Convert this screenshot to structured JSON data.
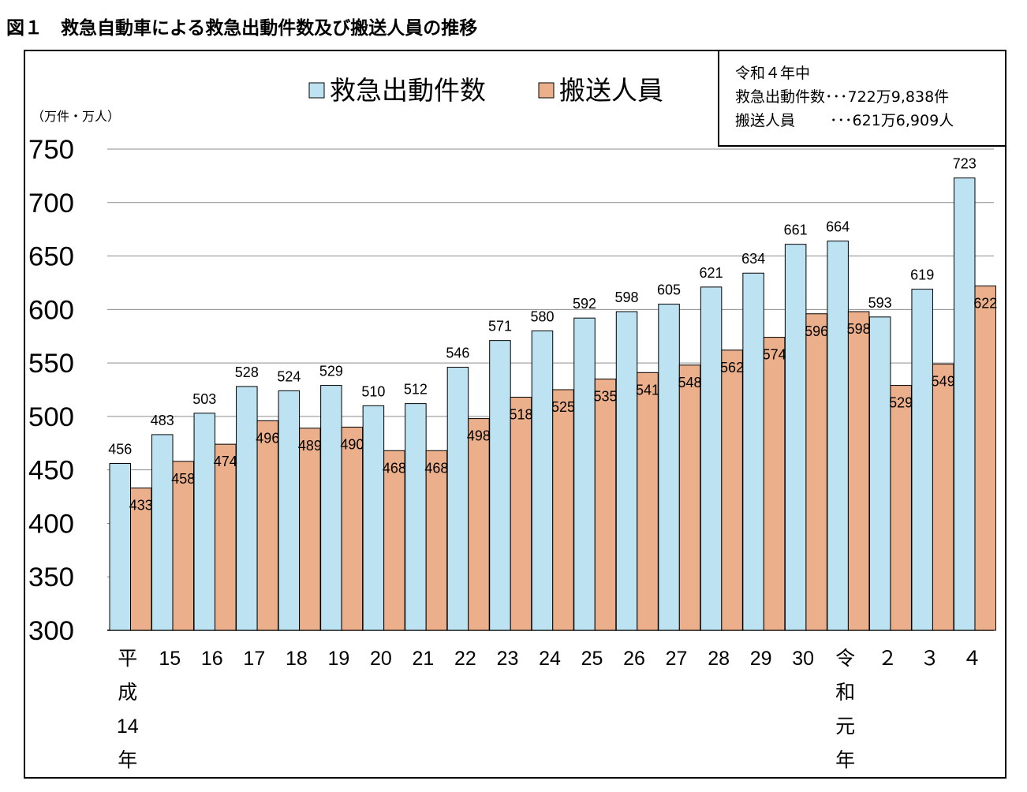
{
  "figure_title": "図１　救急自動車による救急出動件数及び搬送人員の推移",
  "note": {
    "heading": "令和４年中",
    "line1": "救急出動件数･･･722万9,838件",
    "line2": "搬送人員　　 ･･･621万6,909人"
  },
  "chart_data": {
    "type": "bar",
    "title": "",
    "ylabel": "（万件・万人）",
    "xlabel": "",
    "ylim": [
      300,
      750
    ],
    "yticks": [
      300,
      350,
      400,
      450,
      500,
      550,
      600,
      650,
      700,
      750
    ],
    "grid": true,
    "legend_position": "top",
    "categories": [
      "平成14年",
      "15",
      "16",
      "17",
      "18",
      "19",
      "20",
      "21",
      "22",
      "23",
      "24",
      "25",
      "26",
      "27",
      "28",
      "29",
      "30",
      "令和元年",
      "２",
      "３",
      "４"
    ],
    "series": [
      {
        "name": "救急出動件数",
        "color": "#bde3f3",
        "values": [
          456,
          483,
          503,
          528,
          524,
          529,
          510,
          512,
          546,
          571,
          580,
          592,
          598,
          605,
          621,
          634,
          661,
          664,
          593,
          619,
          723
        ]
      },
      {
        "name": "搬送人員",
        "color": "#ebb08b",
        "values": [
          433,
          458,
          474,
          496,
          489,
          490,
          468,
          468,
          498,
          518,
          525,
          535,
          541,
          548,
          562,
          574,
          596,
          598,
          529,
          549,
          622
        ]
      }
    ]
  }
}
